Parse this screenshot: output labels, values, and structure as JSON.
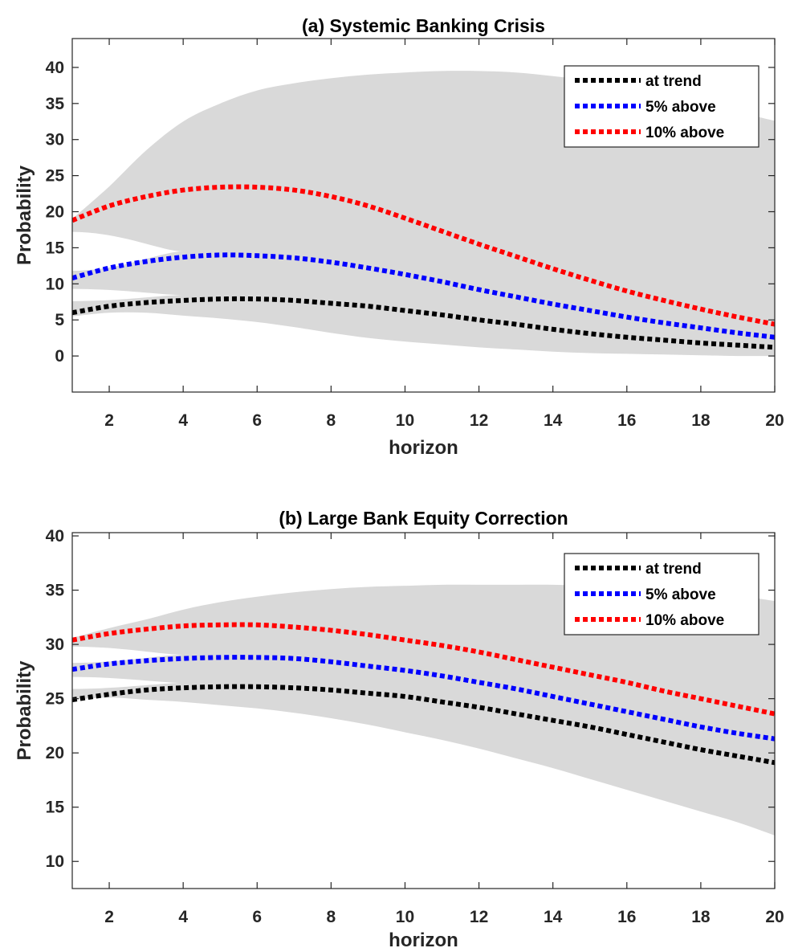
{
  "chart_data": [
    {
      "type": "line",
      "title": "(a) Systemic Banking Crisis",
      "xlabel": "horizon",
      "ylabel": "Probability",
      "xlim": [
        1,
        20
      ],
      "ylim": [
        -5,
        44
      ],
      "xticks": [
        2,
        4,
        6,
        8,
        10,
        12,
        14,
        16,
        18,
        20
      ],
      "yticks": [
        0,
        5,
        10,
        15,
        20,
        25,
        30,
        35,
        40
      ],
      "grid": false,
      "legend_position": "top-right",
      "x": [
        1,
        2,
        3,
        4,
        5,
        6,
        7,
        8,
        9,
        10,
        11,
        12,
        13,
        14,
        15,
        16,
        17,
        18,
        19,
        20
      ],
      "band": {
        "color": "#d9d9d9",
        "upper": [
          19.0,
          23.5,
          28.5,
          32.5,
          35.0,
          36.8,
          37.8,
          38.5,
          39.0,
          39.3,
          39.5,
          39.5,
          39.3,
          38.8,
          38.2,
          37.3,
          36.2,
          35.0,
          33.8,
          32.6
        ],
        "lower": [
          5.5,
          6.0,
          6.0,
          5.6,
          5.2,
          4.7,
          4.0,
          3.2,
          2.5,
          2.0,
          1.6,
          1.2,
          0.9,
          0.6,
          0.4,
          0.3,
          0.2,
          0.1,
          0.0,
          0.0
        ],
        "notches": [
          {
            "between": "at trend / 5% above",
            "at_x": 1,
            "low": 7.6,
            "high": 9.3,
            "fuse_x": 4
          },
          {
            "between": "5% above / 10% above",
            "at_x": 1,
            "low": 11.8,
            "high": 17.2,
            "fuse_x": 4
          }
        ]
      },
      "series": [
        {
          "name": "at trend",
          "color": "#000000",
          "values": [
            6.0,
            6.9,
            7.4,
            7.7,
            7.9,
            7.9,
            7.7,
            7.3,
            6.9,
            6.3,
            5.7,
            5.0,
            4.4,
            3.7,
            3.1,
            2.6,
            2.2,
            1.8,
            1.5,
            1.2
          ]
        },
        {
          "name": "5% above",
          "color": "#0000ff",
          "values": [
            10.8,
            12.2,
            13.1,
            13.7,
            14.0,
            13.9,
            13.6,
            13.0,
            12.2,
            11.3,
            10.3,
            9.2,
            8.2,
            7.2,
            6.3,
            5.4,
            4.6,
            3.9,
            3.2,
            2.6
          ]
        },
        {
          "name": "10% above",
          "color": "#ff0000",
          "values": [
            18.8,
            20.8,
            22.1,
            23.0,
            23.4,
            23.4,
            23.0,
            22.1,
            20.8,
            19.1,
            17.3,
            15.5,
            13.8,
            12.1,
            10.5,
            9.0,
            7.7,
            6.5,
            5.4,
            4.4
          ]
        }
      ]
    },
    {
      "type": "line",
      "title": "(b) Large Bank Equity Correction",
      "xlabel": "horizon",
      "ylabel": "Probability",
      "xlim": [
        1,
        20
      ],
      "ylim": [
        7.5,
        40.3
      ],
      "xticks": [
        2,
        4,
        6,
        8,
        10,
        12,
        14,
        16,
        18,
        20
      ],
      "yticks": [
        10,
        15,
        20,
        25,
        30,
        35,
        40
      ],
      "grid": false,
      "legend_position": "top-right",
      "x": [
        1,
        2,
        3,
        4,
        5,
        6,
        7,
        8,
        9,
        10,
        11,
        12,
        13,
        14,
        15,
        16,
        17,
        18,
        19,
        20
      ],
      "band": {
        "color": "#d9d9d9",
        "upper": [
          30.6,
          31.5,
          32.3,
          33.2,
          33.9,
          34.4,
          34.8,
          35.1,
          35.3,
          35.4,
          35.5,
          35.5,
          35.5,
          35.5,
          35.4,
          35.3,
          35.1,
          34.8,
          34.5,
          34.0
        ],
        "lower": [
          24.9,
          25.1,
          24.9,
          24.7,
          24.4,
          24.1,
          23.7,
          23.2,
          22.6,
          21.9,
          21.2,
          20.4,
          19.5,
          18.6,
          17.6,
          16.6,
          15.6,
          14.6,
          13.6,
          12.4
        ],
        "notches": [
          {
            "between": "at trend / 5% above",
            "at_x": 1,
            "low": 25.9,
            "high": 27.0,
            "fuse_x": 4
          },
          {
            "between": "5% above / 10% above",
            "at_x": 1,
            "low": 28.3,
            "high": 29.8,
            "fuse_x": 4
          }
        ]
      },
      "series": [
        {
          "name": "at trend",
          "color": "#000000",
          "values": [
            24.9,
            25.4,
            25.8,
            26.0,
            26.1,
            26.1,
            26.0,
            25.8,
            25.5,
            25.2,
            24.7,
            24.2,
            23.6,
            23.0,
            22.4,
            21.7,
            21.0,
            20.3,
            19.7,
            19.1
          ]
        },
        {
          "name": "5% above",
          "color": "#0000ff",
          "values": [
            27.7,
            28.2,
            28.5,
            28.7,
            28.8,
            28.8,
            28.7,
            28.4,
            28.0,
            27.6,
            27.1,
            26.5,
            25.9,
            25.2,
            24.5,
            23.8,
            23.1,
            22.4,
            21.8,
            21.3
          ]
        },
        {
          "name": "10% above",
          "color": "#ff0000",
          "values": [
            30.4,
            31.0,
            31.4,
            31.7,
            31.8,
            31.8,
            31.6,
            31.3,
            30.9,
            30.4,
            29.9,
            29.3,
            28.6,
            27.9,
            27.2,
            26.5,
            25.7,
            25.0,
            24.3,
            23.6
          ]
        }
      ]
    }
  ]
}
